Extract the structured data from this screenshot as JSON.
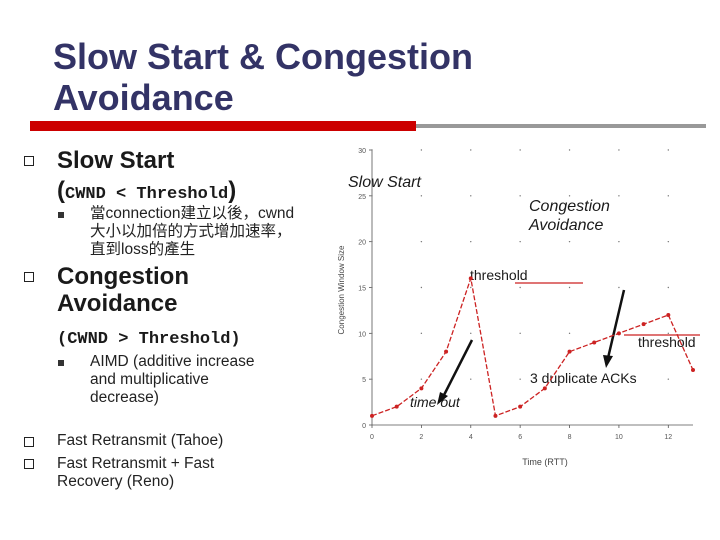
{
  "title_line1": "Slow Start & Congestion",
  "title_line2": "Avoidance",
  "left": {
    "slow_start": {
      "label": "Slow Start",
      "cond_open": "(",
      "cond": "CWND < Threshold",
      "cond_close": ")",
      "sub_line1": "當connection建立以後，cwnd",
      "sub_line2": "大小以加倍的方式增加速率，",
      "sub_line3": "直到loss的產生"
    },
    "congestion": {
      "label_line1": "Congestion",
      "label_line2": "Avoidance",
      "cond": "(CWND > Threshold)",
      "sub_line1": "AIMD (additive increase",
      "sub_line2": "and multiplicative",
      "sub_line3": "decrease)"
    },
    "fast_retransmit": "Fast Retransmit (Tahoe)",
    "fast_recovery_line1": "Fast Retransmit + Fast",
    "fast_recovery_line2": "Recovery (Reno)"
  },
  "chart_data": {
    "type": "line",
    "ylabel": "Congestion Window Size",
    "xlabel": "Time (RTT)",
    "xlim": [
      0,
      13
    ],
    "ylim": [
      0,
      30
    ],
    "x_ticks": [
      "0",
      "2",
      "4",
      "6",
      "8",
      "10",
      "12"
    ],
    "y_ticks": [
      "0",
      "5",
      "10",
      "15",
      "20",
      "25",
      "30"
    ],
    "x": [
      0,
      1,
      2,
      3,
      4,
      5,
      6,
      7,
      8,
      9,
      10,
      11,
      12,
      13
    ],
    "values": [
      1,
      2,
      4,
      8,
      16,
      1,
      2,
      4,
      8,
      9,
      10,
      11,
      12,
      6
    ],
    "annotations": {
      "slow_start": "Slow Start",
      "congestion_line1": "Congestion",
      "congestion_line2": "Avoidance",
      "threshold1": "threshold",
      "threshold2": "threshold",
      "timeout": "time out",
      "dup_acks": "3 duplicate ACKs"
    },
    "line_color": "#cc2222"
  }
}
